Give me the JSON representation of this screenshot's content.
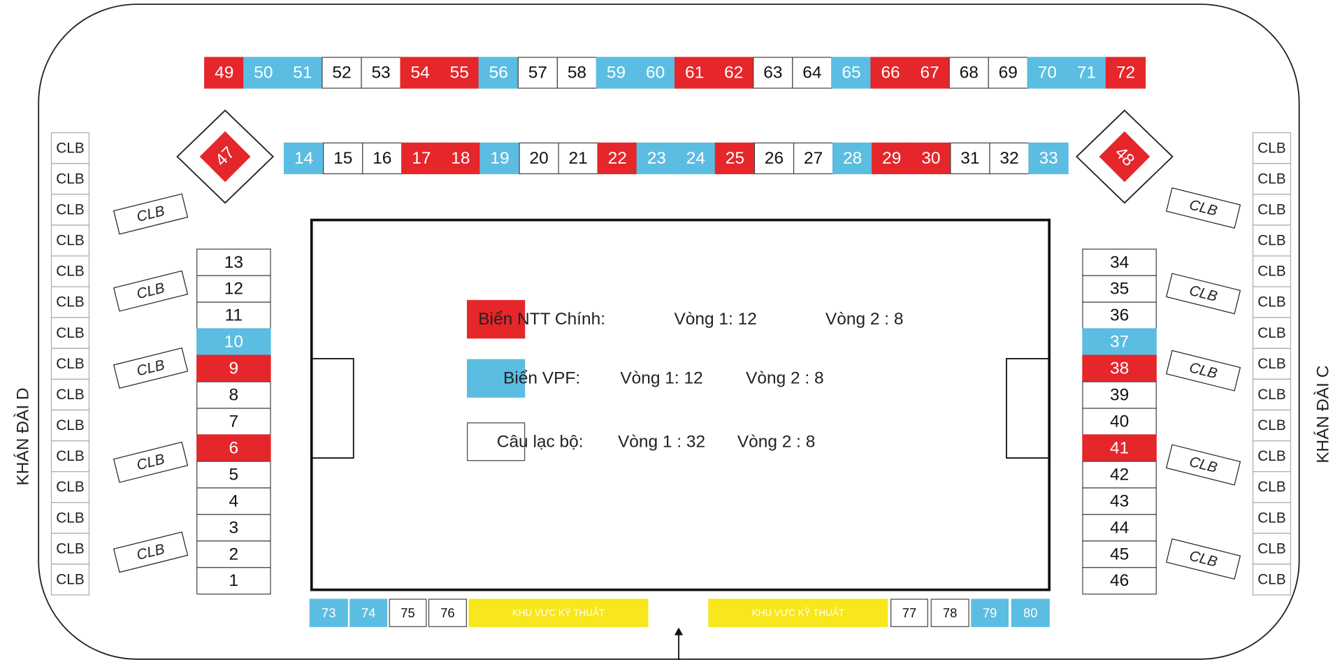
{
  "side_labels": {
    "left": "KHÁN ĐÀI D",
    "right": "KHÁN ĐÀI C"
  },
  "top_row": [
    {
      "label": 49,
      "color": "#e5262a"
    },
    {
      "label": 50,
      "color": "#5bbde1"
    },
    {
      "label": 51,
      "color": "#5bbde1"
    },
    {
      "label": 52,
      "color": "#ffffff"
    },
    {
      "label": 53,
      "color": "#ffffff"
    },
    {
      "label": 54,
      "color": "#e5262a"
    },
    {
      "label": 55,
      "color": "#e5262a"
    },
    {
      "label": 56,
      "color": "#5bbde1"
    },
    {
      "label": 57,
      "color": "#ffffff"
    },
    {
      "label": 58,
      "color": "#ffffff"
    },
    {
      "label": 59,
      "color": "#5bbde1"
    },
    {
      "label": 60,
      "color": "#5bbde1"
    },
    {
      "label": 61,
      "color": "#e5262a"
    },
    {
      "label": 62,
      "color": "#e5262a"
    },
    {
      "label": 63,
      "color": "#ffffff"
    },
    {
      "label": 64,
      "color": "#ffffff"
    },
    {
      "label": 65,
      "color": "#5bbde1"
    },
    {
      "label": 66,
      "color": "#e5262a"
    },
    {
      "label": 67,
      "color": "#e5262a"
    },
    {
      "label": 68,
      "color": "#ffffff"
    },
    {
      "label": 69,
      "color": "#ffffff"
    },
    {
      "label": 70,
      "color": "#5bbde1"
    },
    {
      "label": 71,
      "color": "#5bbde1"
    },
    {
      "label": 72,
      "color": "#e5262a"
    }
  ],
  "second_row": [
    {
      "label": 14,
      "color": "#5bbde1"
    },
    {
      "label": 15,
      "color": "#ffffff"
    },
    {
      "label": 16,
      "color": "#ffffff"
    },
    {
      "label": 17,
      "color": "#e5262a"
    },
    {
      "label": 18,
      "color": "#e5262a"
    },
    {
      "label": 19,
      "color": "#5bbde1"
    },
    {
      "label": 20,
      "color": "#ffffff"
    },
    {
      "label": 21,
      "color": "#ffffff"
    },
    {
      "label": 22,
      "color": "#e5262a"
    },
    {
      "label": 23,
      "color": "#5bbde1"
    },
    {
      "label": 24,
      "color": "#5bbde1"
    },
    {
      "label": 25,
      "color": "#e5262a"
    },
    {
      "label": 26,
      "color": "#ffffff"
    },
    {
      "label": 27,
      "color": "#ffffff"
    },
    {
      "label": 28,
      "color": "#5bbde1"
    },
    {
      "label": 29,
      "color": "#e5262a"
    },
    {
      "label": 30,
      "color": "#e5262a"
    },
    {
      "label": 31,
      "color": "#ffffff"
    },
    {
      "label": 32,
      "color": "#ffffff"
    },
    {
      "label": 33,
      "color": "#5bbde1"
    }
  ],
  "left_column": [
    {
      "label": 13,
      "color": "#ffffff"
    },
    {
      "label": 12,
      "color": "#ffffff"
    },
    {
      "label": 11,
      "color": "#ffffff"
    },
    {
      "label": 10,
      "color": "#5bbde1"
    },
    {
      "label": 9,
      "color": "#e5262a"
    },
    {
      "label": 8,
      "color": "#ffffff"
    },
    {
      "label": 7,
      "color": "#ffffff"
    },
    {
      "label": 6,
      "color": "#e5262a"
    },
    {
      "label": 5,
      "color": "#ffffff"
    },
    {
      "label": 4,
      "color": "#ffffff"
    },
    {
      "label": 3,
      "color": "#ffffff"
    },
    {
      "label": 2,
      "color": "#ffffff"
    },
    {
      "label": 1,
      "color": "#ffffff"
    }
  ],
  "right_column": [
    {
      "label": 34,
      "color": "#ffffff"
    },
    {
      "label": 35,
      "color": "#ffffff"
    },
    {
      "label": 36,
      "color": "#ffffff"
    },
    {
      "label": 37,
      "color": "#5bbde1"
    },
    {
      "label": 38,
      "color": "#e5262a"
    },
    {
      "label": 39,
      "color": "#ffffff"
    },
    {
      "label": 40,
      "color": "#ffffff"
    },
    {
      "label": 41,
      "color": "#e5262a"
    },
    {
      "label": 42,
      "color": "#ffffff"
    },
    {
      "label": 43,
      "color": "#ffffff"
    },
    {
      "label": 44,
      "color": "#ffffff"
    },
    {
      "label": 45,
      "color": "#ffffff"
    },
    {
      "label": 46,
      "color": "#ffffff"
    }
  ],
  "corner_boards": [
    {
      "label": 47,
      "color": "#e5262a"
    },
    {
      "label": 48,
      "color": "#e5262a"
    }
  ],
  "bottom_row": [
    {
      "label": 73,
      "color": "#5bbde1"
    },
    {
      "label": 74,
      "color": "#5bbde1"
    },
    {
      "label": 75,
      "color": "#ffffff"
    },
    {
      "label": 76,
      "color": "#ffffff"
    },
    {
      "label": "KHU VỰC KỸ THUẬT",
      "color": "#f7e71c"
    },
    {
      "label": "KHU VỰC KỸ THUẬT",
      "color": "#f7e71c"
    },
    {
      "label": 77,
      "color": "#ffffff"
    },
    {
      "label": 78,
      "color": "#ffffff"
    },
    {
      "label": 79,
      "color": "#5bbde1"
    },
    {
      "label": 80,
      "color": "#5bbde1"
    }
  ],
  "left_clb": [
    "CLB",
    "CLB",
    "CLB",
    "CLB",
    "CLB",
    "CLB",
    "CLB",
    "CLB",
    "CLB",
    "CLB",
    "CLB",
    "CLB",
    "CLB",
    "CLB",
    "CLB"
  ],
  "right_clb": [
    "CLB",
    "CLB",
    "CLB",
    "CLB",
    "CLB",
    "CLB",
    "CLB",
    "CLB",
    "CLB",
    "CLB",
    "CLB",
    "CLB",
    "CLB",
    "CLB",
    "CLB"
  ],
  "left_tilted_clb": [
    "CLB",
    "CLB",
    "CLB",
    "CLB",
    "CLB"
  ],
  "right_tilted_clb": [
    "CLB",
    "CLB",
    "CLB",
    "CLB",
    "CLB"
  ],
  "legend": [
    {
      "color": "#e5262a",
      "label": "Biển NTT Chính:",
      "round1": "Vòng 1: 12",
      "round2": "Vòng 2 : 8"
    },
    {
      "color": "#5bbde1",
      "label": "Biển VPF:",
      "round1": "Vòng 1: 12",
      "round2": "Vòng 2 : 8"
    },
    {
      "color": "#ffffff",
      "label": "Câu lạc bộ:",
      "round1": "Vòng 1 : 32",
      "round2": "Vòng 2 : 8"
    }
  ]
}
